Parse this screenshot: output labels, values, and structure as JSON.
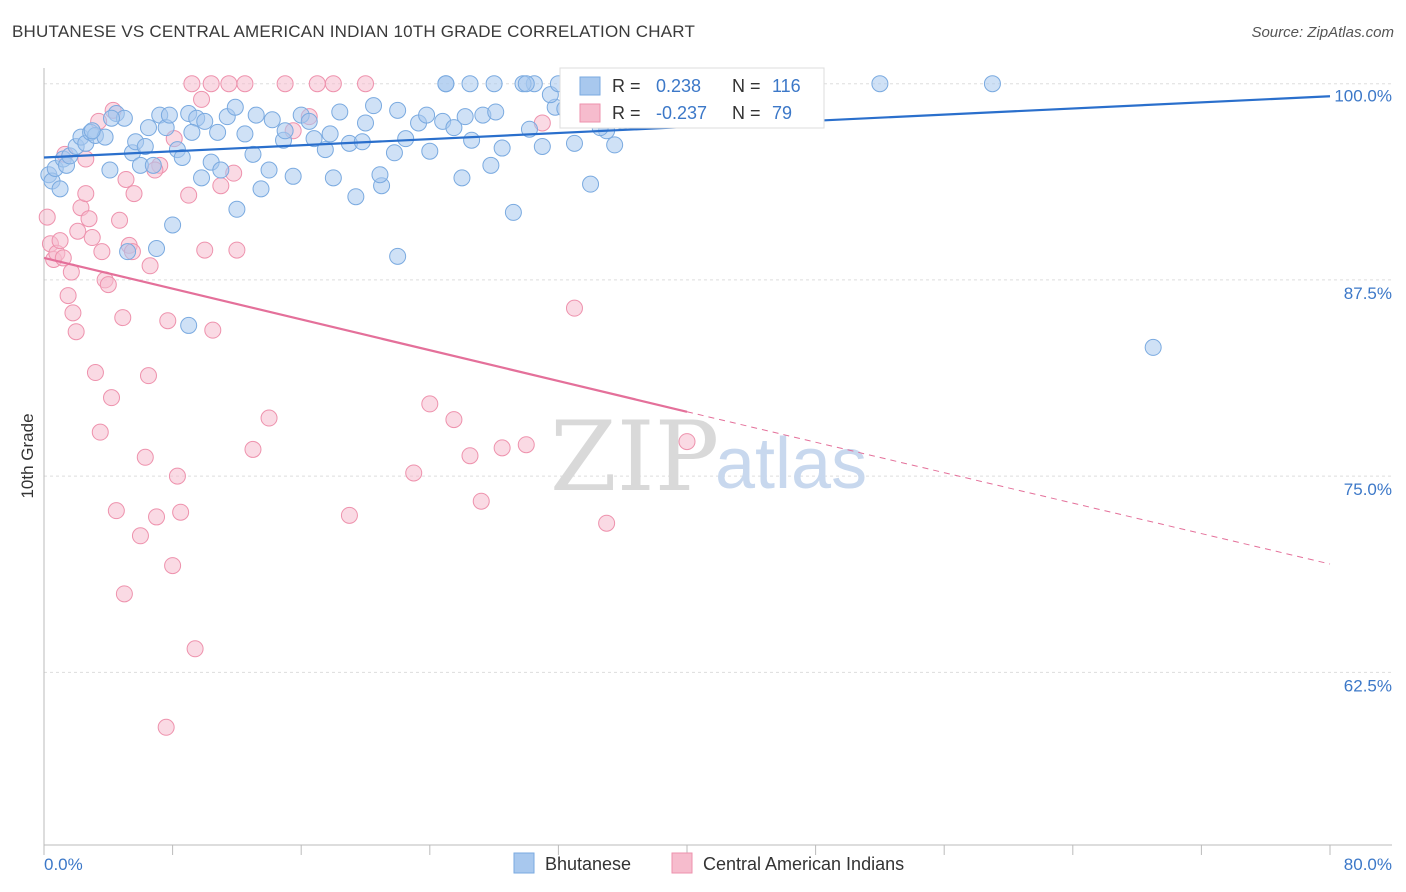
{
  "title": "BHUTANESE VS CENTRAL AMERICAN INDIAN 10TH GRADE CORRELATION CHART",
  "source": "Source: ZipAtlas.com",
  "watermark": {
    "zip": "ZIP",
    "atlas": "atlas"
  },
  "colors": {
    "blue_fill": "#a8c8ee",
    "blue_stroke": "#7aaae0",
    "blue_line": "#2a6fcc",
    "pink_fill": "#f6bccd",
    "pink_stroke": "#ee92ad",
    "pink_line": "#e4709a",
    "tick_label": "#3c78c8",
    "grid": "#dddddd"
  },
  "legend": {
    "rows": [
      {
        "r_label": "R =",
        "r_value": "0.238",
        "n_label": "N =",
        "n_value": "116"
      },
      {
        "r_label": "R =",
        "r_value": "-0.237",
        "n_label": "N =",
        "n_value": "79"
      }
    ]
  },
  "bottom_legend": [
    "Bhutanese",
    "Central American Indians"
  ],
  "chart_data": {
    "type": "scatter",
    "title": "BHUTANESE VS CENTRAL AMERICAN INDIAN 10TH GRADE CORRELATION CHART",
    "xlabel": "",
    "ylabel": "10th Grade",
    "xlim": [
      0,
      80
    ],
    "ylim": [
      51.5,
      101
    ],
    "x_tick_labels": [
      "0.0%",
      "80.0%"
    ],
    "y_ticks": [
      62.5,
      75.0,
      87.5,
      100.0
    ],
    "y_tick_labels": [
      "62.5%",
      "75.0%",
      "87.5%",
      "100.0%"
    ],
    "grid": "horizontal dashed",
    "legend_position": "top-center",
    "series": [
      {
        "name": "Bhutanese",
        "r": 0.238,
        "n": 116,
        "trend": {
          "x": [
            0,
            80
          ],
          "y": [
            95.3,
            99.2
          ]
        },
        "points": [
          [
            0.3,
            94.2
          ],
          [
            0.5,
            93.8
          ],
          [
            0.7,
            94.6
          ],
          [
            1.0,
            93.3
          ],
          [
            1.2,
            95.2
          ],
          [
            1.4,
            94.8
          ],
          [
            1.6,
            95.4
          ],
          [
            2.0,
            96.0
          ],
          [
            2.3,
            96.6
          ],
          [
            2.6,
            96.2
          ],
          [
            2.9,
            96.9
          ],
          [
            3.2,
            96.7
          ],
          [
            3.8,
            96.6
          ],
          [
            4.1,
            94.5
          ],
          [
            4.5,
            98.1
          ],
          [
            5.0,
            97.8
          ],
          [
            5.5,
            95.6
          ],
          [
            5.7,
            96.3
          ],
          [
            6.0,
            94.8
          ],
          [
            6.5,
            97.2
          ],
          [
            7.2,
            98.0
          ],
          [
            7.6,
            97.2
          ],
          [
            8.3,
            95.8
          ],
          [
            8.6,
            95.3
          ],
          [
            9.0,
            98.1
          ],
          [
            9.5,
            97.8
          ],
          [
            9.8,
            94.0
          ],
          [
            10.4,
            95.0
          ],
          [
            10.8,
            96.9
          ],
          [
            11.4,
            97.9
          ],
          [
            11.9,
            98.5
          ],
          [
            12.5,
            96.8
          ],
          [
            13.0,
            95.5
          ],
          [
            13.5,
            93.3
          ],
          [
            14.2,
            97.7
          ],
          [
            14.9,
            96.4
          ],
          [
            15.5,
            94.1
          ],
          [
            16.0,
            98.0
          ],
          [
            16.8,
            96.5
          ],
          [
            17.5,
            95.8
          ],
          [
            18.0,
            94.0
          ],
          [
            18.4,
            98.2
          ],
          [
            19.0,
            96.2
          ],
          [
            19.4,
            92.8
          ],
          [
            20.0,
            97.5
          ],
          [
            20.5,
            98.6
          ],
          [
            21.0,
            93.5
          ],
          [
            21.8,
            95.6
          ],
          [
            22.5,
            96.5
          ],
          [
            23.3,
            97.5
          ],
          [
            24.0,
            95.7
          ],
          [
            25.0,
            100.0
          ],
          [
            26.0,
            94.0
          ],
          [
            26.6,
            96.4
          ],
          [
            27.8,
            94.8
          ],
          [
            28.5,
            95.9
          ],
          [
            29.2,
            91.8
          ],
          [
            30.5,
            100.0
          ],
          [
            31.0,
            96.0
          ],
          [
            31.8,
            98.5
          ],
          [
            33.0,
            96.2
          ],
          [
            34.0,
            93.6
          ],
          [
            35.0,
            97.0
          ],
          [
            36.0,
            97.6
          ],
          [
            37.0,
            100.0
          ],
          [
            38.0,
            97.8
          ],
          [
            39.0,
            100.0
          ],
          [
            52.0,
            100.0
          ],
          [
            59.0,
            100.0
          ],
          [
            69.0,
            83.2
          ],
          [
            12.0,
            92.0
          ],
          [
            13.2,
            98.0
          ],
          [
            14.0,
            94.5
          ],
          [
            15.0,
            97.0
          ],
          [
            16.5,
            97.6
          ],
          [
            17.8,
            96.8
          ],
          [
            19.8,
            96.3
          ],
          [
            20.9,
            94.2
          ],
          [
            22.0,
            98.3
          ],
          [
            23.8,
            98.0
          ],
          [
            24.8,
            97.6
          ],
          [
            25.5,
            97.2
          ],
          [
            26.2,
            97.9
          ],
          [
            27.3,
            98.0
          ],
          [
            28.1,
            98.2
          ],
          [
            29.8,
            100.0
          ],
          [
            30.2,
            97.1
          ],
          [
            31.5,
            99.3
          ],
          [
            32.4,
            98.4
          ],
          [
            33.5,
            98.8
          ],
          [
            34.6,
            97.2
          ],
          [
            35.5,
            96.1
          ],
          [
            37.5,
            98.0
          ],
          [
            38.8,
            98.5
          ],
          [
            9.2,
            96.9
          ],
          [
            10.0,
            97.6
          ],
          [
            8.0,
            91.0
          ],
          [
            7.0,
            89.5
          ],
          [
            6.8,
            94.8
          ],
          [
            5.2,
            89.3
          ],
          [
            22.0,
            89.0
          ],
          [
            25.0,
            100.0
          ],
          [
            26.5,
            100.0
          ],
          [
            28.0,
            100.0
          ],
          [
            30.0,
            100.0
          ],
          [
            32.0,
            100.0
          ],
          [
            33.0,
            100.0
          ],
          [
            34.0,
            100.0
          ],
          [
            35.0,
            100.0
          ],
          [
            36.5,
            100.0
          ],
          [
            3.0,
            97.0
          ],
          [
            4.2,
            97.8
          ],
          [
            6.3,
            96.0
          ],
          [
            7.8,
            98.0
          ],
          [
            9.0,
            84.6
          ],
          [
            11.0,
            94.5
          ]
        ]
      },
      {
        "name": "Central American Indians",
        "r": -0.237,
        "n": 79,
        "trend": {
          "x": [
            0,
            40
          ],
          "y": [
            88.9,
            79.1
          ]
        },
        "trend_dashed": {
          "x": [
            40,
            80
          ],
          "y": [
            79.1,
            69.4
          ]
        },
        "points": [
          [
            0.2,
            91.5
          ],
          [
            0.4,
            89.8
          ],
          [
            0.6,
            88.8
          ],
          [
            0.8,
            89.2
          ],
          [
            1.0,
            90.0
          ],
          [
            1.2,
            88.9
          ],
          [
            1.5,
            86.5
          ],
          [
            1.7,
            88.0
          ],
          [
            2.0,
            84.2
          ],
          [
            1.8,
            85.4
          ],
          [
            2.3,
            92.1
          ],
          [
            2.6,
            93.0
          ],
          [
            2.8,
            91.4
          ],
          [
            3.0,
            90.2
          ],
          [
            3.2,
            81.6
          ],
          [
            3.5,
            77.8
          ],
          [
            3.8,
            87.5
          ],
          [
            4.0,
            87.2
          ],
          [
            4.2,
            80.0
          ],
          [
            4.5,
            72.8
          ],
          [
            4.7,
            91.3
          ],
          [
            4.9,
            85.1
          ],
          [
            5.0,
            67.5
          ],
          [
            5.3,
            89.7
          ],
          [
            5.5,
            89.3
          ],
          [
            6.0,
            71.2
          ],
          [
            6.3,
            76.2
          ],
          [
            6.5,
            81.4
          ],
          [
            7.0,
            72.4
          ],
          [
            7.2,
            94.8
          ],
          [
            7.7,
            84.9
          ],
          [
            8.0,
            69.3
          ],
          [
            8.3,
            75.0
          ],
          [
            8.5,
            72.7
          ],
          [
            9.0,
            92.9
          ],
          [
            9.4,
            64.0
          ],
          [
            10.0,
            89.4
          ],
          [
            10.4,
            100.0
          ],
          [
            11.0,
            93.5
          ],
          [
            11.5,
            100.0
          ],
          [
            12.0,
            89.4
          ],
          [
            13.0,
            76.7
          ],
          [
            14.0,
            78.7
          ],
          [
            15.0,
            100.0
          ],
          [
            16.5,
            97.9
          ],
          [
            17.0,
            100.0
          ],
          [
            19.0,
            72.5
          ],
          [
            20.0,
            100.0
          ],
          [
            23.0,
            75.2
          ],
          [
            24.0,
            79.6
          ],
          [
            25.5,
            78.6
          ],
          [
            26.5,
            76.3
          ],
          [
            27.2,
            73.4
          ],
          [
            28.5,
            76.8
          ],
          [
            30.0,
            77.0
          ],
          [
            31.0,
            97.5
          ],
          [
            33.0,
            85.7
          ],
          [
            35.0,
            72.0
          ],
          [
            38.0,
            98.0
          ],
          [
            40.0,
            77.2
          ],
          [
            7.6,
            59.0
          ],
          [
            8.1,
            96.5
          ],
          [
            9.2,
            100.0
          ],
          [
            10.5,
            84.3
          ],
          [
            6.6,
            88.4
          ],
          [
            5.1,
            93.9
          ],
          [
            4.3,
            98.3
          ],
          [
            3.6,
            89.3
          ],
          [
            2.1,
            90.6
          ],
          [
            1.3,
            95.5
          ],
          [
            2.6,
            95.2
          ],
          [
            3.4,
            97.6
          ],
          [
            12.5,
            100.0
          ],
          [
            15.5,
            97.0
          ],
          [
            18.0,
            100.0
          ],
          [
            5.6,
            93.0
          ],
          [
            6.9,
            94.5
          ],
          [
            9.8,
            99.0
          ],
          [
            11.8,
            94.3
          ]
        ]
      }
    ]
  }
}
